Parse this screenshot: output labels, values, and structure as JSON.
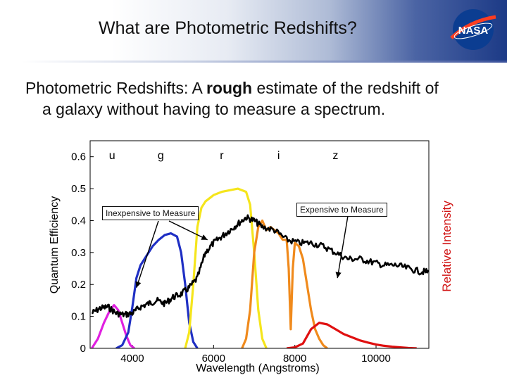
{
  "slide": {
    "title": "What are Photometric Redshifts?",
    "logo_text": "NASA",
    "body_part1": "Photometric Redshifts: A ",
    "body_bold": "rough",
    "body_part2": " estimate of the redshift of",
    "body_line2": "a galaxy without having to measure a spectrum."
  },
  "chart_data": {
    "type": "line",
    "title": "",
    "xlabel": "Wavelength (Angstroms)",
    "ylabel": "Quantum Efficiency",
    "ylabel_right": "Relative Intensity",
    "xlim": [
      2960,
      11300
    ],
    "ylim": [
      0,
      0.65
    ],
    "x_ticks": [
      4000,
      6000,
      8000,
      10000
    ],
    "y_ticks": [
      0,
      0.1,
      0.2,
      0.3,
      0.4,
      0.5,
      0.6
    ],
    "band_labels": [
      {
        "name": "u",
        "x": 3500
      },
      {
        "name": "g",
        "x": 4700
      },
      {
        "name": "r",
        "x": 6200
      },
      {
        "name": "i",
        "x": 7600
      },
      {
        "name": "z",
        "x": 9000
      }
    ],
    "series": [
      {
        "name": "u",
        "color": "#e020e0",
        "x": [
          3000,
          3150,
          3300,
          3450,
          3550,
          3650,
          3750,
          3850,
          3950,
          4050
        ],
        "y": [
          0.0,
          0.03,
          0.08,
          0.12,
          0.135,
          0.12,
          0.08,
          0.04,
          0.01,
          0.0
        ]
      },
      {
        "name": "g",
        "color": "#1f2fc4",
        "x": [
          3600,
          3750,
          3900,
          4000,
          4100,
          4200,
          4300,
          4400,
          4500,
          4650,
          4800,
          4950,
          5100,
          5200,
          5300,
          5400,
          5500,
          5600
        ],
        "y": [
          0.0,
          0.01,
          0.05,
          0.13,
          0.22,
          0.26,
          0.28,
          0.3,
          0.32,
          0.34,
          0.355,
          0.36,
          0.35,
          0.3,
          0.2,
          0.08,
          0.02,
          0.0
        ]
      },
      {
        "name": "r",
        "color": "#f5e51c",
        "x": [
          5300,
          5400,
          5500,
          5600,
          5700,
          5800,
          5900,
          6000,
          6200,
          6400,
          6600,
          6800,
          6900,
          7000,
          7100,
          7200,
          7300
        ],
        "y": [
          0.0,
          0.05,
          0.2,
          0.38,
          0.44,
          0.46,
          0.47,
          0.48,
          0.49,
          0.495,
          0.5,
          0.49,
          0.45,
          0.3,
          0.12,
          0.03,
          0.0
        ]
      },
      {
        "name": "i",
        "color": "#f08a1c",
        "x": [
          6700,
          6800,
          6900,
          7000,
          7100,
          7200,
          7300,
          7400,
          7500,
          7600,
          7700,
          7800,
          7850,
          7900,
          7950,
          8000,
          8100,
          8200,
          8300,
          8400,
          8500,
          8600,
          8700,
          8800
        ],
        "y": [
          0.0,
          0.03,
          0.12,
          0.3,
          0.38,
          0.4,
          0.37,
          0.38,
          0.37,
          0.36,
          0.34,
          0.34,
          0.25,
          0.06,
          0.25,
          0.33,
          0.32,
          0.28,
          0.2,
          0.12,
          0.06,
          0.03,
          0.01,
          0.0
        ]
      },
      {
        "name": "z",
        "color": "#e01010",
        "x": [
          7800,
          8000,
          8200,
          8400,
          8600,
          8800,
          9000,
          9200,
          9400,
          9600,
          9800,
          10000,
          10200,
          10400,
          10600,
          10800,
          11000
        ],
        "y": [
          0.0,
          0.003,
          0.015,
          0.06,
          0.08,
          0.075,
          0.06,
          0.045,
          0.035,
          0.025,
          0.018,
          0.012,
          0.008,
          0.005,
          0.003,
          0.001,
          0.0
        ]
      },
      {
        "name": "galaxy spectrum",
        "color": "#000000",
        "x": [
          3000,
          3200,
          3400,
          3600,
          3800,
          4000,
          4200,
          4400,
          4600,
          4800,
          5000,
          5200,
          5400,
          5600,
          5800,
          6000,
          6200,
          6400,
          6600,
          6800,
          7000,
          7200,
          7500,
          7800,
          8100,
          8400,
          8700,
          9000,
          9300,
          9600,
          9900,
          10200,
          10500,
          10800,
          11100,
          11300
        ],
        "y": [
          0.11,
          0.125,
          0.13,
          0.11,
          0.105,
          0.11,
          0.13,
          0.14,
          0.15,
          0.14,
          0.16,
          0.17,
          0.19,
          0.22,
          0.3,
          0.33,
          0.35,
          0.37,
          0.39,
          0.41,
          0.4,
          0.38,
          0.37,
          0.34,
          0.33,
          0.33,
          0.32,
          0.3,
          0.28,
          0.28,
          0.27,
          0.26,
          0.26,
          0.25,
          0.24,
          0.24
        ]
      }
    ],
    "annotations": [
      {
        "text": "Inexpensive to Measure",
        "targets": [
          {
            "x": 4100,
            "y": 0.19
          },
          {
            "x": 5850,
            "y": 0.34
          }
        ]
      },
      {
        "text": "Expensive to Measure",
        "targets": [
          {
            "x": 9050,
            "y": 0.22
          }
        ]
      }
    ]
  }
}
